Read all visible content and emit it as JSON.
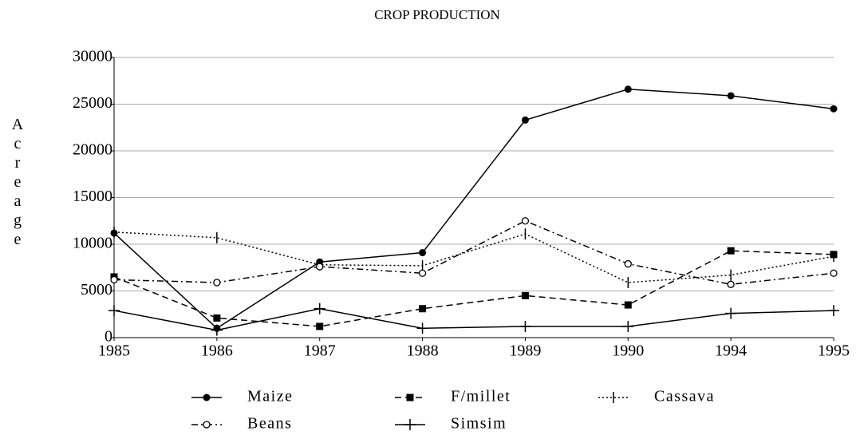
{
  "chart_data": {
    "type": "line",
    "title": "CROP PRODUCTION",
    "y_label": "Acreage",
    "categories": [
      "1985",
      "1986",
      "1987",
      "1988",
      "1989",
      "1990",
      "1994",
      "1995"
    ],
    "series": [
      {
        "name": "Maize",
        "color": "#000000",
        "line_style": "solid",
        "marker": "filled-circle",
        "values": [
          11200,
          1000,
          8100,
          9100,
          23300,
          26600,
          25900,
          24500
        ]
      },
      {
        "name": "F/millet",
        "color": "#000000",
        "line_style": "dashed",
        "marker": "square",
        "values": [
          6500,
          2100,
          1200,
          3100,
          4500,
          3500,
          9300,
          8900
        ]
      },
      {
        "name": "Cassava",
        "color": "#000000",
        "line_style": "dotted",
        "marker": "tick",
        "values": [
          11300,
          10700,
          7800,
          7700,
          11100,
          5900,
          6700,
          8700
        ]
      },
      {
        "name": "Beans",
        "color": "#000000",
        "line_style": "dashdot",
        "marker": "open-circle",
        "values": [
          6200,
          5900,
          7600,
          6900,
          12500,
          7900,
          5700,
          6900
        ]
      },
      {
        "name": "Simsim",
        "color": "#000000",
        "line_style": "solid",
        "marker": "plus",
        "values": [
          2900,
          800,
          3100,
          1000,
          1200,
          1200,
          2600,
          2900
        ]
      }
    ],
    "ylim": [
      0,
      30000
    ],
    "yticks": [
      0,
      5000,
      10000,
      15000,
      20000,
      25000,
      30000
    ],
    "grid": true
  }
}
